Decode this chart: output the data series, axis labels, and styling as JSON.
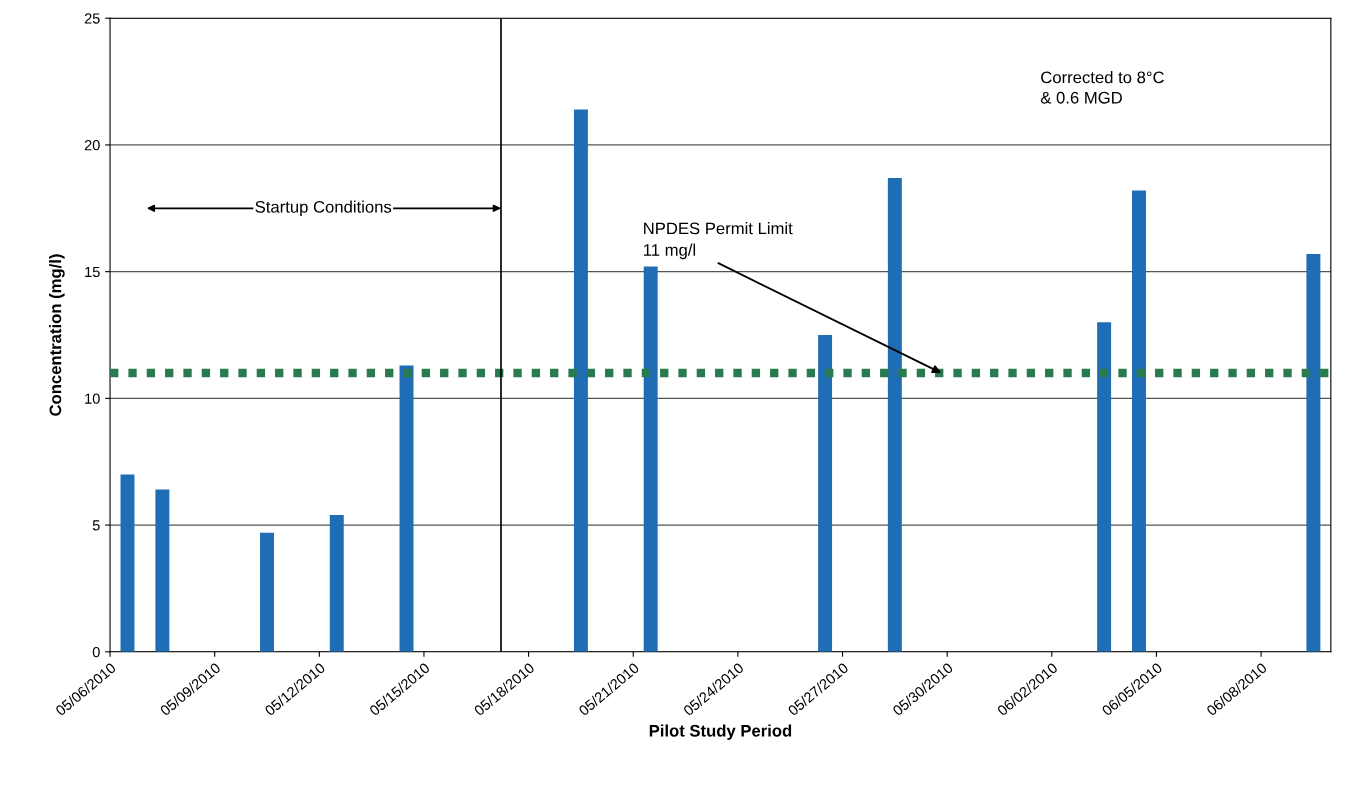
{
  "chart_data": {
    "type": "bar",
    "xlabel": "Pilot Study Period",
    "ylabel": "Concentration (mg/l)",
    "x": [
      "2010-05-06T12:00",
      "2010-05-07T12:00",
      "2010-05-10T12:00",
      "2010-05-12T12:00",
      "2010-05-14T12:00",
      "2010-05-19T12:00",
      "2010-05-21T12:00",
      "2010-05-26T12:00",
      "2010-05-28T12:00",
      "2010-06-03T12:00",
      "2010-06-04T12:00",
      "2010-06-09T12:00"
    ],
    "values": [
      7.0,
      6.4,
      4.7,
      5.4,
      11.3,
      21.4,
      15.2,
      12.5,
      18.7,
      13.0,
      18.2,
      15.7
    ],
    "color": "#1f6db5",
    "xlim": [
      "2010-05-06",
      "2010-06-10"
    ],
    "xticks": [
      {
        "value": "2010-05-06",
        "label": "05/06/2010"
      },
      {
        "value": "2010-05-09",
        "label": "05/09/2010"
      },
      {
        "value": "2010-05-12",
        "label": "05/12/2010"
      },
      {
        "value": "2010-05-15",
        "label": "05/15/2010"
      },
      {
        "value": "2010-05-18",
        "label": "05/18/2010"
      },
      {
        "value": "2010-05-21",
        "label": "05/21/2010"
      },
      {
        "value": "2010-05-24",
        "label": "05/24/2010"
      },
      {
        "value": "2010-05-27",
        "label": "05/27/2010"
      },
      {
        "value": "2010-05-30",
        "label": "05/30/2010"
      },
      {
        "value": "2010-06-02",
        "label": "06/02/2010"
      },
      {
        "value": "2010-06-05",
        "label": "06/05/2010"
      },
      {
        "value": "2010-06-08",
        "label": "06/08/2010"
      }
    ],
    "ylim": [
      0,
      25
    ],
    "yticks": [
      0,
      5,
      10,
      15,
      20,
      25
    ],
    "grid": "y",
    "ref_lines": [
      {
        "axis": "y",
        "value": 11,
        "color": "#2a7a50",
        "line_style": "dotted"
      },
      {
        "axis": "x",
        "value": "2010-05-17T05:00",
        "color": "#000000",
        "line_style": "solid"
      }
    ],
    "annotations": [
      "Startup Conditions",
      {
        "text": "NPDES Permit Limit\n11 mg/l",
        "x": "2010-05-29T20:00",
        "y": 11
      },
      "Corrected to 8°C\n& 0.6 MGD"
    ]
  }
}
